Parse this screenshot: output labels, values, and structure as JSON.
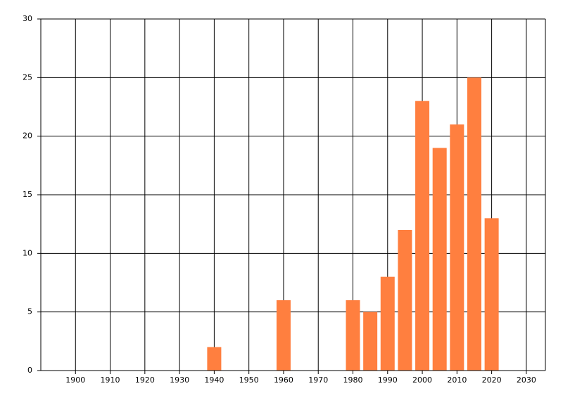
{
  "chart_data": {
    "type": "bar",
    "x": [
      1940,
      1960,
      1980,
      1985,
      1990,
      1995,
      2000,
      2005,
      2010,
      2015,
      2020
    ],
    "values": [
      2,
      6,
      6,
      5,
      8,
      12,
      23,
      19,
      21,
      25,
      13
    ],
    "color": "#ff7f3f",
    "xlim": [
      1890,
      2035.5
    ],
    "xticks": [
      1900,
      1910,
      1920,
      1930,
      1940,
      1950,
      1960,
      1970,
      1980,
      1990,
      2000,
      2010,
      2020,
      2030
    ],
    "ylim": [
      0,
      30
    ],
    "yticks": [
      0,
      5,
      10,
      15,
      20,
      25,
      30
    ],
    "grid": true
  }
}
